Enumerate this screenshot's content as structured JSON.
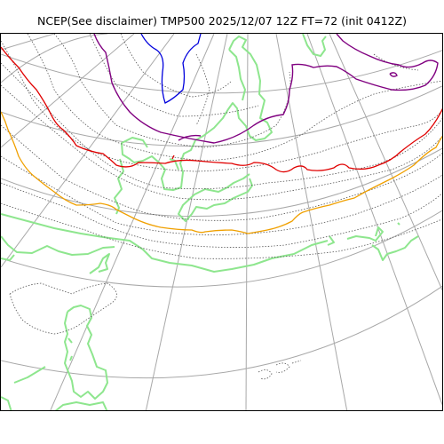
{
  "title": "NCEP(See disclaimer) TMP500 2025/12/07 12Z FT=72 (init 0412Z)",
  "colors": {
    "coastline": "#8ee68e",
    "grid": "#a8a8a8",
    "isotherm_minor": "#555555",
    "isotherm_cold_blue": "#0000dd",
    "isotherm_purple": "#800080",
    "isotherm_red": "#e00000",
    "isotherm_orange": "#f0a000"
  }
}
